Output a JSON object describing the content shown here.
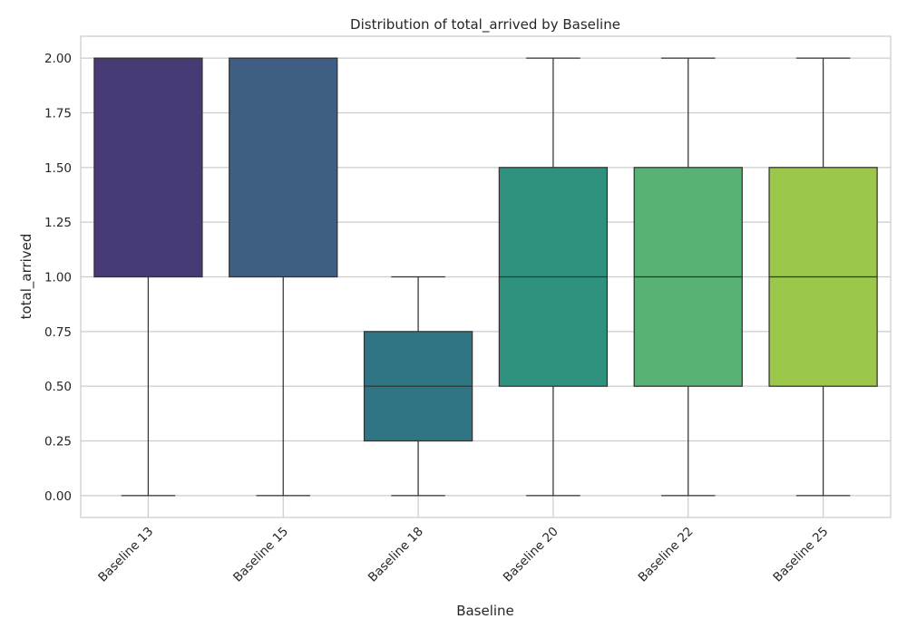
{
  "chart_data": {
    "type": "box",
    "title": "Distribution of total_arrived by Baseline",
    "xlabel": "Baseline",
    "ylabel": "total_arrived",
    "ylim": [
      -0.1,
      2.1
    ],
    "yticks": [
      0.0,
      0.25,
      0.5,
      0.75,
      1.0,
      1.25,
      1.5,
      1.75,
      2.0
    ],
    "ytick_labels": [
      "0.00",
      "0.25",
      "0.50",
      "0.75",
      "1.00",
      "1.25",
      "1.50",
      "1.75",
      "2.00"
    ],
    "grid": true,
    "categories": [
      "Baseline 13",
      "Baseline 15",
      "Baseline 18",
      "Baseline 20",
      "Baseline 22",
      "Baseline 25"
    ],
    "boxes": [
      {
        "whisker_low": 0.0,
        "q1": 1.0,
        "median": 2.0,
        "q3": 2.0,
        "whisker_high": 2.0,
        "color": "#483a74"
      },
      {
        "whisker_low": 0.0,
        "q1": 1.0,
        "median": 2.0,
        "q3": 2.0,
        "whisker_high": 2.0,
        "color": "#3f5e83"
      },
      {
        "whisker_low": 0.0,
        "q1": 0.25,
        "median": 0.5,
        "q3": 0.75,
        "whisker_high": 1.0,
        "color": "#2f7583"
      },
      {
        "whisker_low": 0.0,
        "q1": 0.5,
        "median": 1.0,
        "q3": 1.5,
        "whisker_high": 2.0,
        "color": "#2e927f"
      },
      {
        "whisker_low": 0.0,
        "q1": 0.5,
        "median": 1.0,
        "q3": 1.5,
        "whisker_high": 2.0,
        "color": "#57b273"
      },
      {
        "whisker_low": 0.0,
        "q1": 0.5,
        "median": 1.0,
        "q3": 1.5,
        "whisker_high": 2.0,
        "color": "#9bc84b"
      }
    ]
  }
}
